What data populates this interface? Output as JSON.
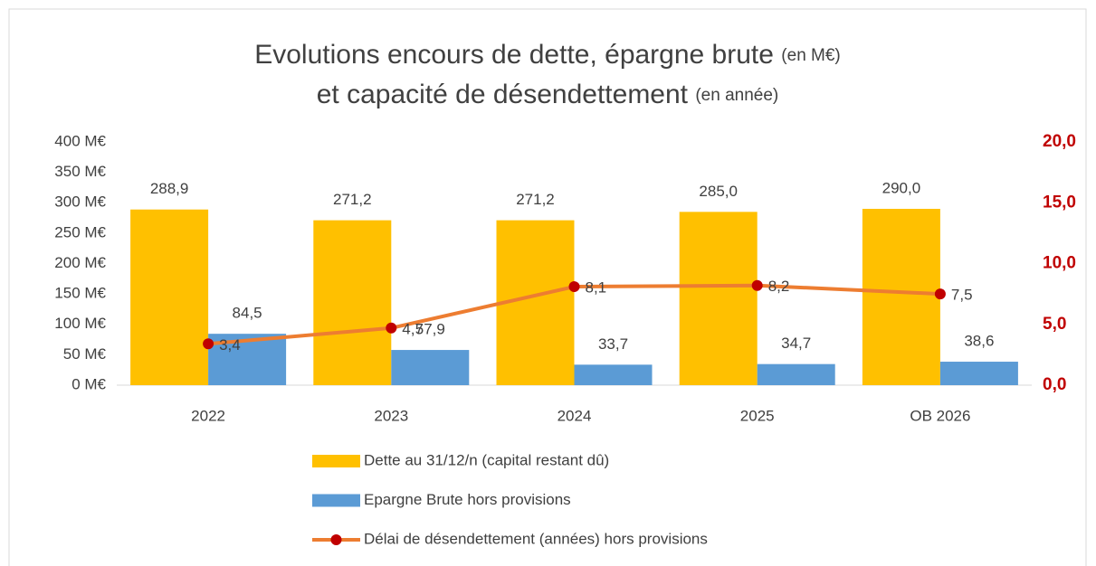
{
  "chart_data": {
    "type": "bar_line",
    "title_lines": [
      {
        "text": "Evolutions encours de dette, épargne brute",
        "note": "(en M€)"
      },
      {
        "text": "et capacité de désendettement",
        "note": "(en année)"
      }
    ],
    "categories": [
      "2022",
      "2023",
      "2024",
      "2025",
      "OB 2026"
    ],
    "series": [
      {
        "name": "Dette au 31/12/n (capital restant dû)",
        "color": "#FFC000",
        "kind": "bar",
        "values": [
          288.9,
          271.2,
          271.2,
          285.0,
          290.0
        ],
        "value_labels": [
          "288,9",
          "271,2",
          "271,2",
          "285,0",
          "290,0"
        ]
      },
      {
        "name": "Epargne Brute hors provisions",
        "color": "#5B9BD5",
        "kind": "bar",
        "values": [
          84.5,
          57.9,
          33.7,
          34.7,
          38.6
        ],
        "value_labels": [
          "84,5",
          "57,9",
          "33,7",
          "34,7",
          "38,6"
        ]
      },
      {
        "name": "Délai de désendettement (années) hors provisions",
        "color": "#ED7D31",
        "marker_color": "#C00000",
        "kind": "line",
        "axis": "y2",
        "values": [
          3.4,
          4.7,
          8.1,
          8.2,
          7.5
        ],
        "value_labels": [
          "3,4",
          "4,7",
          "8,1",
          "8,2",
          "7,5"
        ]
      }
    ],
    "ylim": [
      0,
      400
    ],
    "yticks": [
      {
        "value": 0,
        "label": "0 M€"
      },
      {
        "value": 50,
        "label": "50 M€"
      },
      {
        "value": 100,
        "label": "100 M€"
      },
      {
        "value": 150,
        "label": "150 M€"
      },
      {
        "value": 200,
        "label": "200 M€"
      },
      {
        "value": 250,
        "label": "250 M€"
      },
      {
        "value": 300,
        "label": "300 M€"
      },
      {
        "value": 350,
        "label": "350 M€"
      },
      {
        "value": 400,
        "label": "400 M€"
      }
    ],
    "y2lim": [
      0,
      20
    ],
    "y2ticks": [
      {
        "value": 0,
        "label": "0,0"
      },
      {
        "value": 5,
        "label": "5,0"
      },
      {
        "value": 10,
        "label": "10,0"
      },
      {
        "value": 15,
        "label": "15,0"
      },
      {
        "value": 20,
        "label": "20,0"
      }
    ],
    "y2_color": "#C00000",
    "grid": false
  }
}
